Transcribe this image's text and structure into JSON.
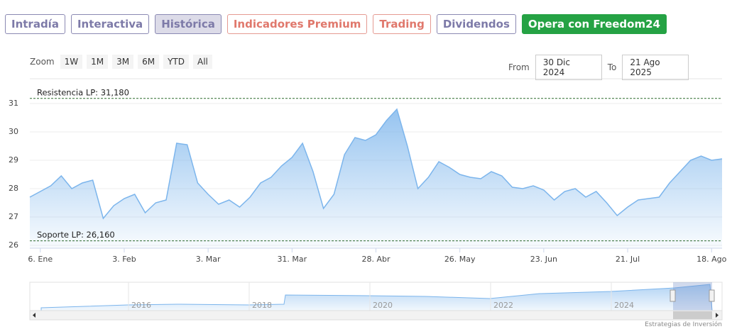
{
  "tabs": [
    "Intradía",
    "Interactiva",
    "Histórica",
    "Indicadores Premium",
    "Trading",
    "Dividendos"
  ],
  "cta": "Opera con Freedom24",
  "zoom": {
    "label": "Zoom",
    "buttons": [
      "1W",
      "1M",
      "3M",
      "6M",
      "YTD",
      "All"
    ]
  },
  "range": {
    "from_label": "From",
    "from": "30 Dic 2024",
    "to_label": "To",
    "to": "21 Ago 2025"
  },
  "chart_data": {
    "type": "area",
    "categories": [
      null,
      "6. Ene",
      null,
      null,
      null,
      null,
      null,
      null,
      null,
      "3. Feb",
      null,
      null,
      null,
      null,
      null,
      null,
      null,
      "3. Mar",
      null,
      null,
      null,
      null,
      null,
      null,
      null,
      "31. Mar",
      null,
      null,
      null,
      null,
      null,
      null,
      null,
      "28. Abr",
      null,
      null,
      null,
      null,
      null,
      null,
      null,
      "26. May",
      null,
      null,
      null,
      null,
      null,
      null,
      null,
      "23. Jun",
      null,
      null,
      null,
      null,
      null,
      null,
      null,
      "21. Jul",
      null,
      null,
      null,
      null,
      null,
      null,
      null,
      "18. Ago",
      null
    ],
    "series": [
      {
        "color": "#7cb5ec",
        "values": [
          27.7,
          27.9,
          28.1,
          28.45,
          28.0,
          28.2,
          28.3,
          26.95,
          27.4,
          27.65,
          27.8,
          27.15,
          27.5,
          27.6,
          29.6,
          29.55,
          28.2,
          27.8,
          27.45,
          27.6,
          27.35,
          27.7,
          28.2,
          28.4,
          28.8,
          29.1,
          29.6,
          28.6,
          27.3,
          27.8,
          29.2,
          29.8,
          29.7,
          29.9,
          30.4,
          30.8,
          29.5,
          28.0,
          28.4,
          28.95,
          28.75,
          28.5,
          28.4,
          28.35,
          28.6,
          28.45,
          28.05,
          28.0,
          28.1,
          27.95,
          27.6,
          27.9,
          28.0,
          27.7,
          27.9,
          27.5,
          27.05,
          27.35,
          27.6,
          27.65,
          27.7,
          28.2,
          28.6,
          29.0,
          29.15,
          29.0,
          29.05
        ]
      }
    ],
    "ylim": [
      25.9,
      31.85
    ],
    "yticks": [
      26,
      27,
      28,
      29,
      30,
      31
    ],
    "grid": true,
    "plot_lines": [
      {
        "value": 31.18,
        "label": "Resistencia LP: 31,180",
        "color": "#2e6b2e"
      },
      {
        "value": 26.16,
        "label": "Soporte LP: 26,160",
        "color": "#2e6b2e"
      }
    ]
  },
  "navigator": {
    "years": [
      "2016",
      "2018",
      "2020",
      "2022",
      "2024"
    ]
  },
  "credit": "Estrategias de Inversión"
}
